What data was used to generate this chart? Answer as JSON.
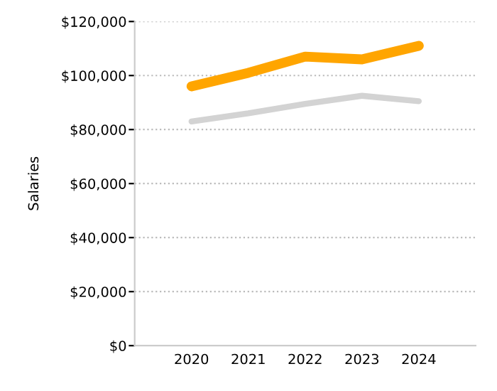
{
  "chart_data": {
    "type": "line",
    "ylabel": "Salaries",
    "categories": [
      "2020",
      "2021",
      "2022",
      "2023",
      "2024"
    ],
    "series": [
      {
        "color": "#ffa500",
        "values": [
          96000,
          101000,
          107000,
          106000,
          111000
        ]
      },
      {
        "color": "#d3d3d3",
        "values": [
          83000,
          86000,
          89500,
          92500,
          90500
        ]
      }
    ],
    "ylim": [
      0,
      120000
    ],
    "yticks": [
      {
        "value": 0,
        "label": "$0"
      },
      {
        "value": 20000,
        "label": "$20,000"
      },
      {
        "value": 40000,
        "label": "$40,000"
      },
      {
        "value": 60000,
        "label": "$60,000"
      },
      {
        "value": 80000,
        "label": "$80,000"
      },
      {
        "value": 100000,
        "label": "$100,000"
      },
      {
        "value": 120000,
        "label": "$120,000"
      }
    ],
    "grid": "y",
    "legend": false,
    "marker": "none",
    "line_style": "solid"
  }
}
